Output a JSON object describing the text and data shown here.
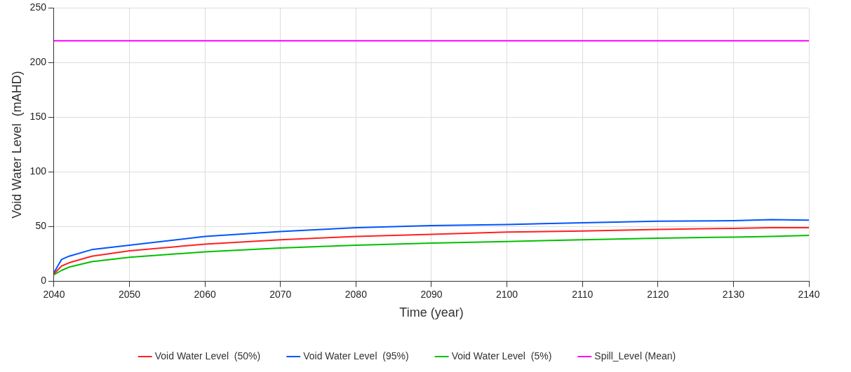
{
  "chart_data": {
    "type": "line",
    "xlabel": "Time (year)",
    "ylabel": "Void Water Level  (mAHD)",
    "xlim": [
      2040,
      2140
    ],
    "xticks": [
      2040,
      2050,
      2060,
      2070,
      2080,
      2090,
      2100,
      2110,
      2120,
      2130,
      2140
    ],
    "ylim": [
      0,
      250
    ],
    "yticks": [
      0,
      50,
      100,
      150,
      200,
      250
    ],
    "grid": true,
    "legend": "bottom",
    "marker": "none",
    "line_style": "solid",
    "x": [
      2040,
      2041,
      2042,
      2045,
      2050,
      2060,
      2070,
      2080,
      2090,
      2100,
      2110,
      2120,
      2130,
      2135,
      2140
    ],
    "series": [
      {
        "name": "Void Water Level  (50%)",
        "color": "#ff2020",
        "values": [
          7,
          14,
          17,
          23,
          28,
          34,
          38,
          41,
          43,
          45,
          46,
          47.5,
          48.5,
          49,
          49
        ]
      },
      {
        "name": "Void Water Level  (95%)",
        "color": "#0055ff",
        "values": [
          8,
          20,
          23,
          29,
          33,
          41,
          45.5,
          49,
          51,
          52,
          53.5,
          55,
          55.5,
          56.5,
          56
        ]
      },
      {
        "name": "Void Water Level  (5%)",
        "color": "#00c000",
        "values": [
          6,
          10,
          13,
          18,
          22,
          27,
          30.5,
          33,
          35,
          36.5,
          38,
          39.5,
          40.5,
          41,
          42
        ]
      },
      {
        "name": "Spill_Level (Mean)",
        "color": "#ff00ff",
        "x": [
          2040,
          2140
        ],
        "values": [
          220,
          220
        ]
      }
    ]
  }
}
